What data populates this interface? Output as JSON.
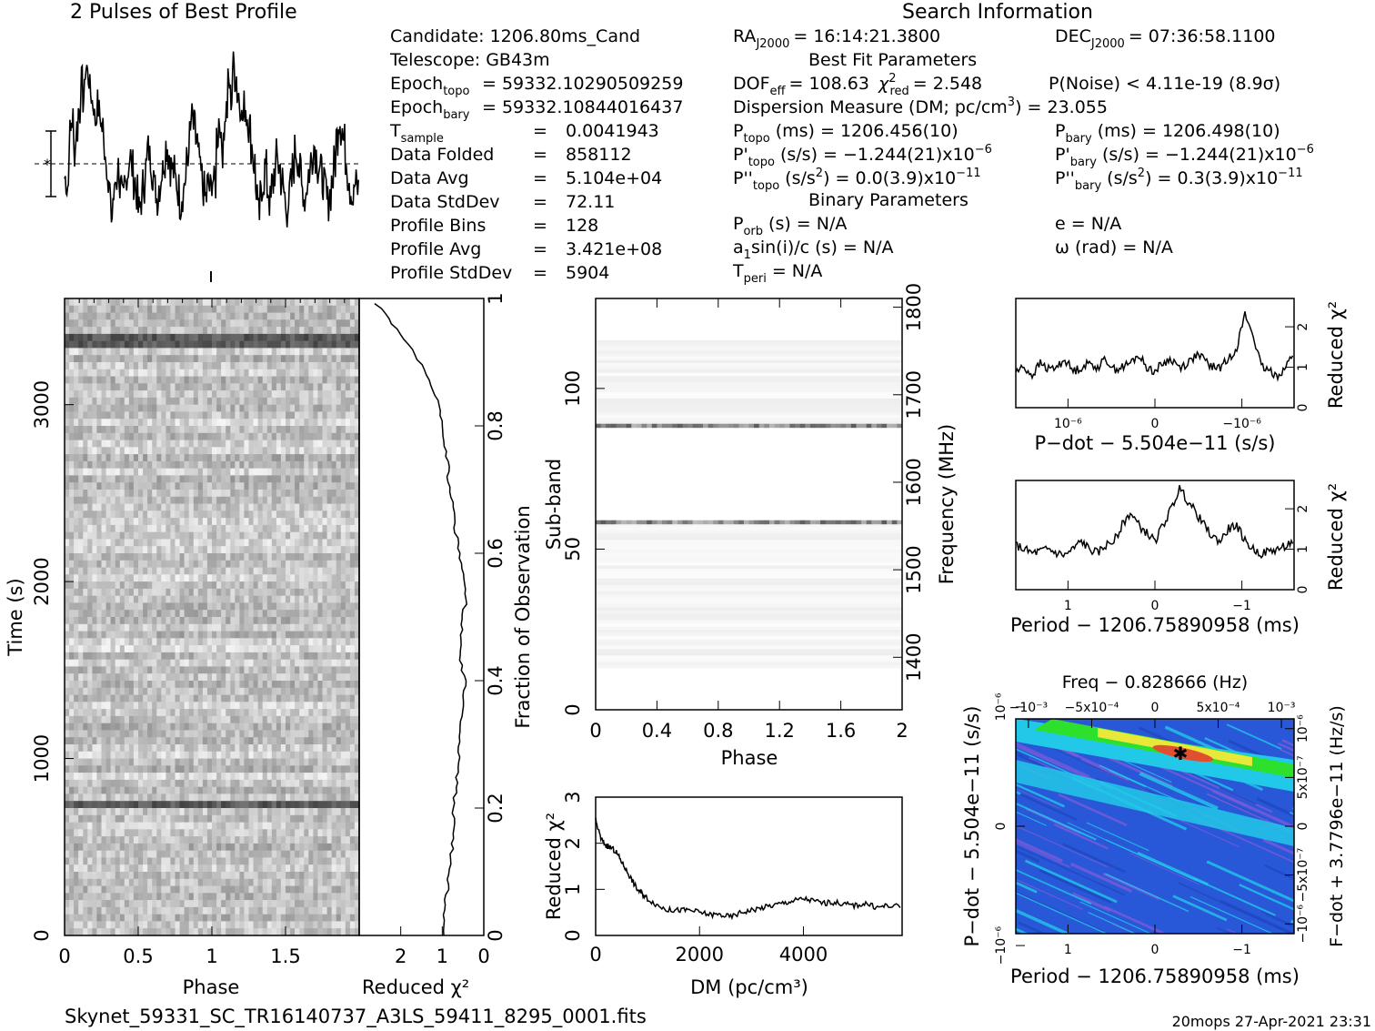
{
  "header": {
    "profile_title": "2 Pulses of Best Profile",
    "search_title": "Search Information",
    "best_fit_title": "Best Fit Parameters",
    "binary_title": "Binary Parameters"
  },
  "info": {
    "candidate": "Candidate:  1206.80ms_Cand",
    "telescope": "Telescope:  GB43m",
    "epoch_topo_label": "Epoch",
    "epoch_topo_sub": "topo",
    "epoch_topo_val": "= 59332.10290509259",
    "epoch_bary_label": "Epoch",
    "epoch_bary_sub": "bary",
    "epoch_bary_val": "= 59332.10844016437",
    "tsample_label": "T",
    "tsample_sub": "sample",
    "rows": [
      {
        "label": "",
        "eq": "=",
        "value": "0.0041943"
      },
      {
        "label": "Data Folded",
        "eq": "=",
        "value": "858112"
      },
      {
        "label": "Data Avg",
        "eq": "=",
        "value": "5.104e+04"
      },
      {
        "label": "Data StdDev",
        "eq": "=",
        "value": "72.11"
      },
      {
        "label": "Profile Bins",
        "eq": "=",
        "value": "128"
      },
      {
        "label": "Profile Avg",
        "eq": "=",
        "value": "3.421e+08"
      },
      {
        "label": "Profile StdDev",
        "eq": "=",
        "value": "5904"
      }
    ],
    "ra": "= 16:14:21.3800",
    "dec": "= 07:36:58.1100",
    "dof": "= 108.63",
    "chi2": "= 2.548",
    "pnoise": "P(Noise) < 4.11e-19   (8.9σ)",
    "dm": "Dispersion Measure (DM; pc/cm",
    "dm_val": ") = 23.055",
    "ptopo": "(ms) =   1206.456(10)",
    "pbary": "(ms) =   1206.498(10)",
    "pdtopo": "(s/s) = −1.244(21)x10",
    "pdbary": "(s/s) = −1.244(21)x10",
    "pddtopo": "(s/s",
    "pddtopo_val": ") = 0.0(3.9)x10",
    "pddbary": "(s/s",
    "pddbary_val": ") =  0.3(3.9)x10",
    "porb": "(s) = N/A",
    "a1": "sin(i)/c (s) = N/A",
    "tperi": "= N/A",
    "e": "e = N/A",
    "omega": "ω (rad) = N/A"
  },
  "footer": {
    "filename": "Skynet_59331_SC_TR16140737_A3LS_59411_8295_0001.fits",
    "stamp": "20mops 27-Apr-2021 23:31"
  },
  "chart_data": [
    {
      "type": "line",
      "panel": "profile",
      "title": "2 Pulses of Best Profile",
      "x_range": [
        0,
        2
      ],
      "bins": 128,
      "values": [
        0.35,
        0.32,
        0.55,
        0.62,
        0.48,
        0.58,
        0.66,
        0.78,
        0.72,
        0.86,
        0.82,
        0.74,
        0.7,
        0.62,
        0.68,
        0.64,
        0.58,
        0.5,
        0.42,
        0.3,
        0.18,
        0.26,
        0.34,
        0.4,
        0.3,
        0.24,
        0.32,
        0.38,
        0.45,
        0.4,
        0.34,
        0.28,
        0.2,
        0.25,
        0.32,
        0.4,
        0.48,
        0.44,
        0.38,
        0.3,
        0.26,
        0.32,
        0.38,
        0.44,
        0.5,
        0.46,
        0.4,
        0.38,
        0.34,
        0.3,
        0.24,
        0.28,
        0.34,
        0.42,
        0.54,
        0.62,
        0.58,
        0.52,
        0.44,
        0.36,
        0.3,
        0.26,
        0.32,
        0.3,
        0.35,
        0.32,
        0.55,
        0.62,
        0.48,
        0.58,
        0.66,
        0.78,
        0.72,
        0.86,
        0.82,
        0.74,
        0.7,
        0.62,
        0.68,
        0.64,
        0.58,
        0.5,
        0.42,
        0.3,
        0.18,
        0.26,
        0.34,
        0.4,
        0.3,
        0.24,
        0.32,
        0.38,
        0.45,
        0.4,
        0.34,
        0.28,
        0.2,
        0.25,
        0.32,
        0.4,
        0.48,
        0.44,
        0.38,
        0.3,
        0.26,
        0.32,
        0.38,
        0.44,
        0.5,
        0.46,
        0.4,
        0.38,
        0.34,
        0.3,
        0.24,
        0.28,
        0.34,
        0.42,
        0.54,
        0.62,
        0.58,
        0.52,
        0.44,
        0.36,
        0.3,
        0.26,
        0.32,
        0.3
      ]
    },
    {
      "type": "heatmap",
      "panel": "time-phase",
      "xlabel": "Phase",
      "ylabel": "Time (s)",
      "x_ticks": [
        "0",
        "0.5",
        "1",
        "1.5"
      ],
      "x_tick_values": [
        0,
        0.5,
        1,
        1.5
      ],
      "y_ticks": [
        "0",
        "1000",
        "2000",
        "3000"
      ],
      "y_tick_values": [
        0,
        1000,
        2000,
        3000
      ],
      "x_range": [
        0,
        2
      ],
      "y_range": [
        0,
        3600
      ],
      "dark_rows": [
        3360,
        740
      ]
    },
    {
      "type": "line",
      "panel": "chi2-vs-time",
      "xlabel": "Reduced χ²",
      "ylabel_right": "Fraction of Observation",
      "x_ticks": [
        "2",
        "1",
        "0"
      ],
      "x_tick_values": [
        2,
        1,
        0
      ],
      "y_ticks": [
        "0",
        "0.2",
        "0.4",
        "0.6",
        "0.8",
        "1"
      ],
      "y_tick_values": [
        0,
        0.2,
        0.4,
        0.6,
        0.8,
        1
      ],
      "x_range": [
        3,
        0
      ],
      "y_range": [
        0,
        1
      ],
      "fraction": [
        0.0,
        0.04,
        0.08,
        0.12,
        0.16,
        0.2,
        0.24,
        0.28,
        0.32,
        0.36,
        0.4,
        0.44,
        0.48,
        0.52,
        0.56,
        0.6,
        0.64,
        0.68,
        0.72,
        0.76,
        0.8,
        0.84,
        0.88,
        0.92,
        0.96,
        1.0
      ],
      "chi2": [
        1.0,
        0.95,
        0.85,
        0.8,
        0.7,
        0.75,
        0.65,
        0.6,
        0.55,
        0.5,
        0.45,
        0.6,
        0.55,
        0.45,
        0.5,
        0.6,
        0.7,
        0.75,
        0.85,
        0.9,
        1.0,
        1.1,
        1.4,
        1.7,
        2.2,
        2.7
      ]
    },
    {
      "type": "heatmap",
      "panel": "subband-phase",
      "xlabel": "Phase",
      "ylabel": "Sub-band",
      "ylabel_right": "Frequency (MHz)",
      "x_ticks": [
        "0",
        "0.4",
        "0.8",
        "1.2",
        "1.6",
        "2"
      ],
      "x_tick_values": [
        0,
        0.4,
        0.8,
        1.2,
        1.6,
        2
      ],
      "y_ticks": [
        "0",
        "50",
        "100"
      ],
      "y_tick_values": [
        0,
        50,
        100
      ],
      "y_ticks_right": [
        "1400",
        "1500",
        "1600",
        "1700",
        "1800"
      ],
      "y_tick_values_right": [
        1400,
        1500,
        1600,
        1700,
        1800
      ],
      "x_range": [
        0,
        2
      ],
      "y_range": [
        0,
        128
      ],
      "y_range_right": [
        1340,
        1810
      ],
      "filled_bands": [
        [
          13,
          58
        ],
        [
          88,
          115
        ]
      ],
      "dark_rows": [
        58,
        88
      ]
    },
    {
      "type": "line",
      "panel": "dm-chi2",
      "xlabel": "DM (pc/cm³)",
      "ylabel": "Reduced χ²",
      "x_ticks": [
        "0",
        "2000",
        "4000"
      ],
      "x_tick_values": [
        0,
        2000,
        4000
      ],
      "y_ticks": [
        "0",
        "1",
        "2",
        "3"
      ],
      "y_tick_values": [
        0,
        1,
        2,
        3
      ],
      "x_range": [
        0,
        5900
      ],
      "y_range": [
        0,
        3
      ],
      "x": [
        0,
        100,
        200,
        300,
        400,
        500,
        600,
        700,
        800,
        900,
        1000,
        1200,
        1400,
        1600,
        1800,
        2000,
        2200,
        2400,
        2600,
        2800,
        3000,
        3200,
        3400,
        3600,
        3800,
        4000,
        4200,
        4400,
        4600,
        4800,
        5000,
        5200,
        5400,
        5600,
        5900
      ],
      "y": [
        2.5,
        2.1,
        1.95,
        1.9,
        1.8,
        1.6,
        1.4,
        1.2,
        1.0,
        0.9,
        0.8,
        0.65,
        0.55,
        0.55,
        0.55,
        0.5,
        0.45,
        0.45,
        0.4,
        0.5,
        0.55,
        0.6,
        0.65,
        0.7,
        0.75,
        0.8,
        0.75,
        0.7,
        0.72,
        0.68,
        0.65,
        0.7,
        0.6,
        0.65,
        0.62
      ]
    },
    {
      "type": "line",
      "panel": "pdot-chi2",
      "xlabel": "P−dot − 5.504e−11 (s/s)",
      "ylabel_right": "Reduced χ²",
      "x_ticks": [
        "10⁻⁶",
        "0",
        "−10⁻⁶"
      ],
      "x_tick_values": [
        1e-06,
        0,
        -1e-06
      ],
      "y_ticks": [
        "0",
        "1",
        "2"
      ],
      "y_tick_values": [
        0,
        1,
        2
      ],
      "x_range": [
        1.6e-06,
        -1.6e-06
      ],
      "y_range": [
        0,
        2.7
      ],
      "y": [
        0.9,
        1.0,
        0.8,
        1.1,
        0.95,
        1.0,
        1.2,
        0.9,
        1.0,
        1.1,
        1.0,
        1.2,
        0.95,
        1.0,
        1.1,
        1.3,
        1.0,
        0.9,
        1.1,
        1.2,
        1.0,
        1.1,
        1.3,
        1.2,
        1.0,
        1.0,
        1.2,
        1.5,
        2.3,
        1.8,
        1.0,
        0.9,
        0.8,
        1.0,
        1.4
      ]
    },
    {
      "type": "line",
      "panel": "period-chi2",
      "xlabel": "Period − 1206.75890958 (ms)",
      "ylabel_right": "Reduced χ²",
      "x_ticks": [
        "1",
        "0",
        "−1"
      ],
      "x_tick_values": [
        1,
        0,
        -1
      ],
      "y_ticks": [
        "0",
        "1",
        "2"
      ],
      "y_tick_values": [
        0,
        1,
        2
      ],
      "x_range": [
        1.6,
        -1.6
      ],
      "y_range": [
        0,
        2.7
      ],
      "y": [
        1.1,
        1.0,
        0.9,
        0.95,
        1.0,
        0.9,
        0.85,
        1.0,
        1.2,
        1.0,
        0.9,
        1.1,
        1.2,
        1.6,
        1.9,
        1.6,
        1.4,
        1.2,
        1.6,
        2.0,
        2.5,
        2.2,
        1.9,
        1.6,
        1.3,
        1.2,
        1.5,
        1.6,
        1.2,
        1.0,
        0.9,
        0.95,
        1.0,
        1.1,
        1.2
      ]
    },
    {
      "type": "heatmap",
      "panel": "period-pdot",
      "title": "Freq − 0.828666 (Hz)",
      "xlabel": "Period − 1206.75890958 (ms)",
      "ylabel": "P−dot − 5.504e−11 (s/s)",
      "ylabel_right": "F−dot + 3.7796e−11 (Hz/s)",
      "x_ticks": [
        "1",
        "0",
        "−1"
      ],
      "x_tick_values": [
        1,
        0,
        -1
      ],
      "top_ticks": [
        "−10⁻³",
        "−5x10⁻⁴",
        "0",
        "5x10⁻⁴",
        "10⁻³"
      ],
      "top_tick_values": [
        -0.001,
        -0.0005,
        0,
        0.0005,
        0.001
      ],
      "y_ticks": [
        "10⁻⁶",
        "0",
        "−10⁻⁶"
      ],
      "y_tick_values": [
        1e-06,
        0,
        -1e-06
      ],
      "right_ticks": [
        "10⁻⁶",
        "5x10⁻⁷",
        "0",
        "−5x10⁻⁷",
        "−10⁻⁶"
      ],
      "right_tick_values": [
        1e-06,
        5e-07,
        0,
        -5e-07,
        -1e-06
      ],
      "best_fit_marker": {
        "period": -0.3,
        "pdot": -1.25e-06
      }
    }
  ],
  "colors": {
    "accent_green": "#2ee02e",
    "accent_yellow": "#e8e83a",
    "accent_red": "#e05030",
    "cyan": "#22c8e8",
    "blue": "#2858d8",
    "violet": "#7a5ad8"
  }
}
